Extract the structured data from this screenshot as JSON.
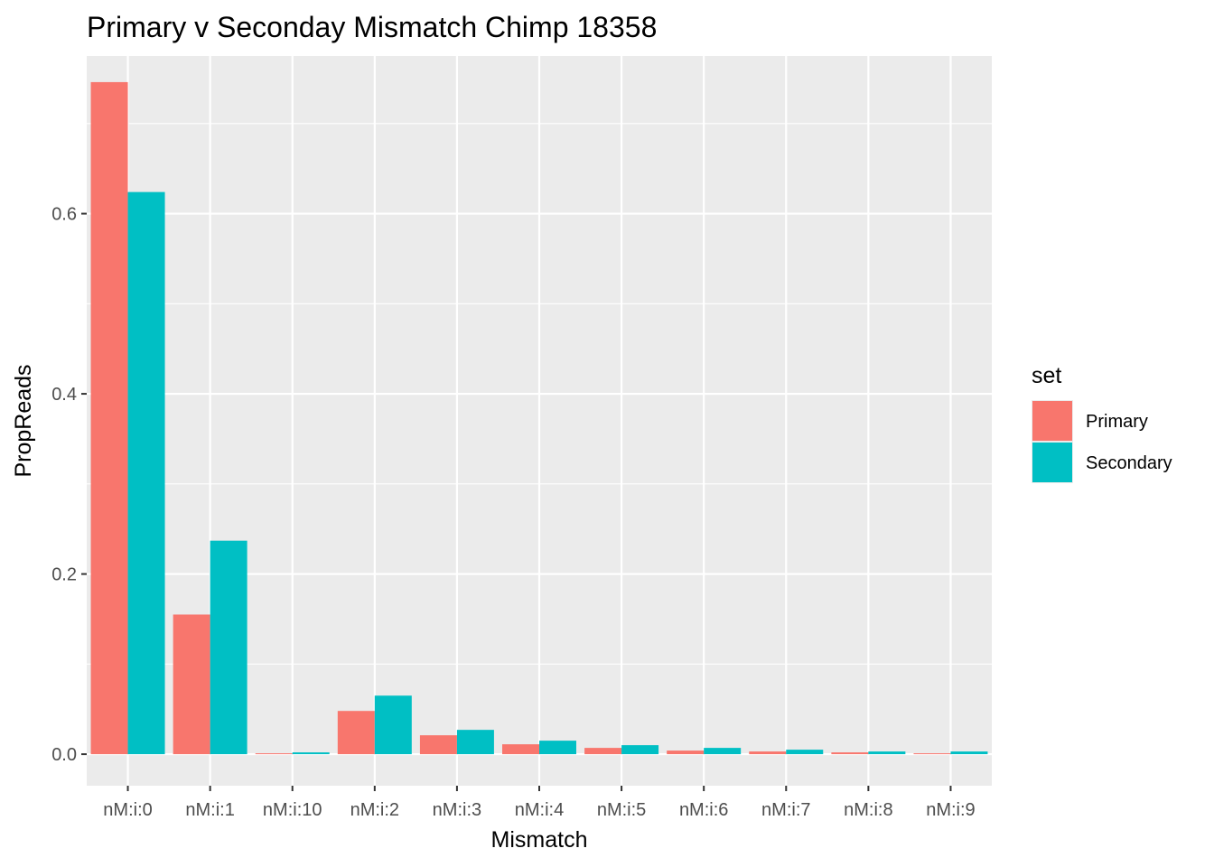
{
  "chart_data": {
    "type": "bar",
    "title": "Primary v Seconday Mismatch Chimp 18358",
    "xlabel": "Mismatch",
    "ylabel": "PropReads",
    "categories": [
      "nM:i:0",
      "nM:i:1",
      "nM:i:10",
      "nM:i:2",
      "nM:i:3",
      "nM:i:4",
      "nM:i:5",
      "nM:i:6",
      "nM:i:7",
      "nM:i:8",
      "nM:i:9"
    ],
    "series": [
      {
        "name": "Primary",
        "color": "#F8766D",
        "values": [
          0.746,
          0.155,
          0.001,
          0.048,
          0.021,
          0.011,
          0.007,
          0.004,
          0.003,
          0.002,
          0.001
        ]
      },
      {
        "name": "Secondary",
        "color": "#00BFC4",
        "values": [
          0.624,
          0.237,
          0.002,
          0.065,
          0.027,
          0.015,
          0.01,
          0.007,
          0.005,
          0.003,
          0.003
        ]
      }
    ],
    "ylim": [
      -0.035,
      0.775
    ],
    "yticks": [
      0.0,
      0.2,
      0.4,
      0.6
    ],
    "ytick_labels": [
      "0.0",
      "0.2",
      "0.4",
      "0.6"
    ],
    "grid": true,
    "legend": {
      "title": "set",
      "position": "right"
    }
  }
}
